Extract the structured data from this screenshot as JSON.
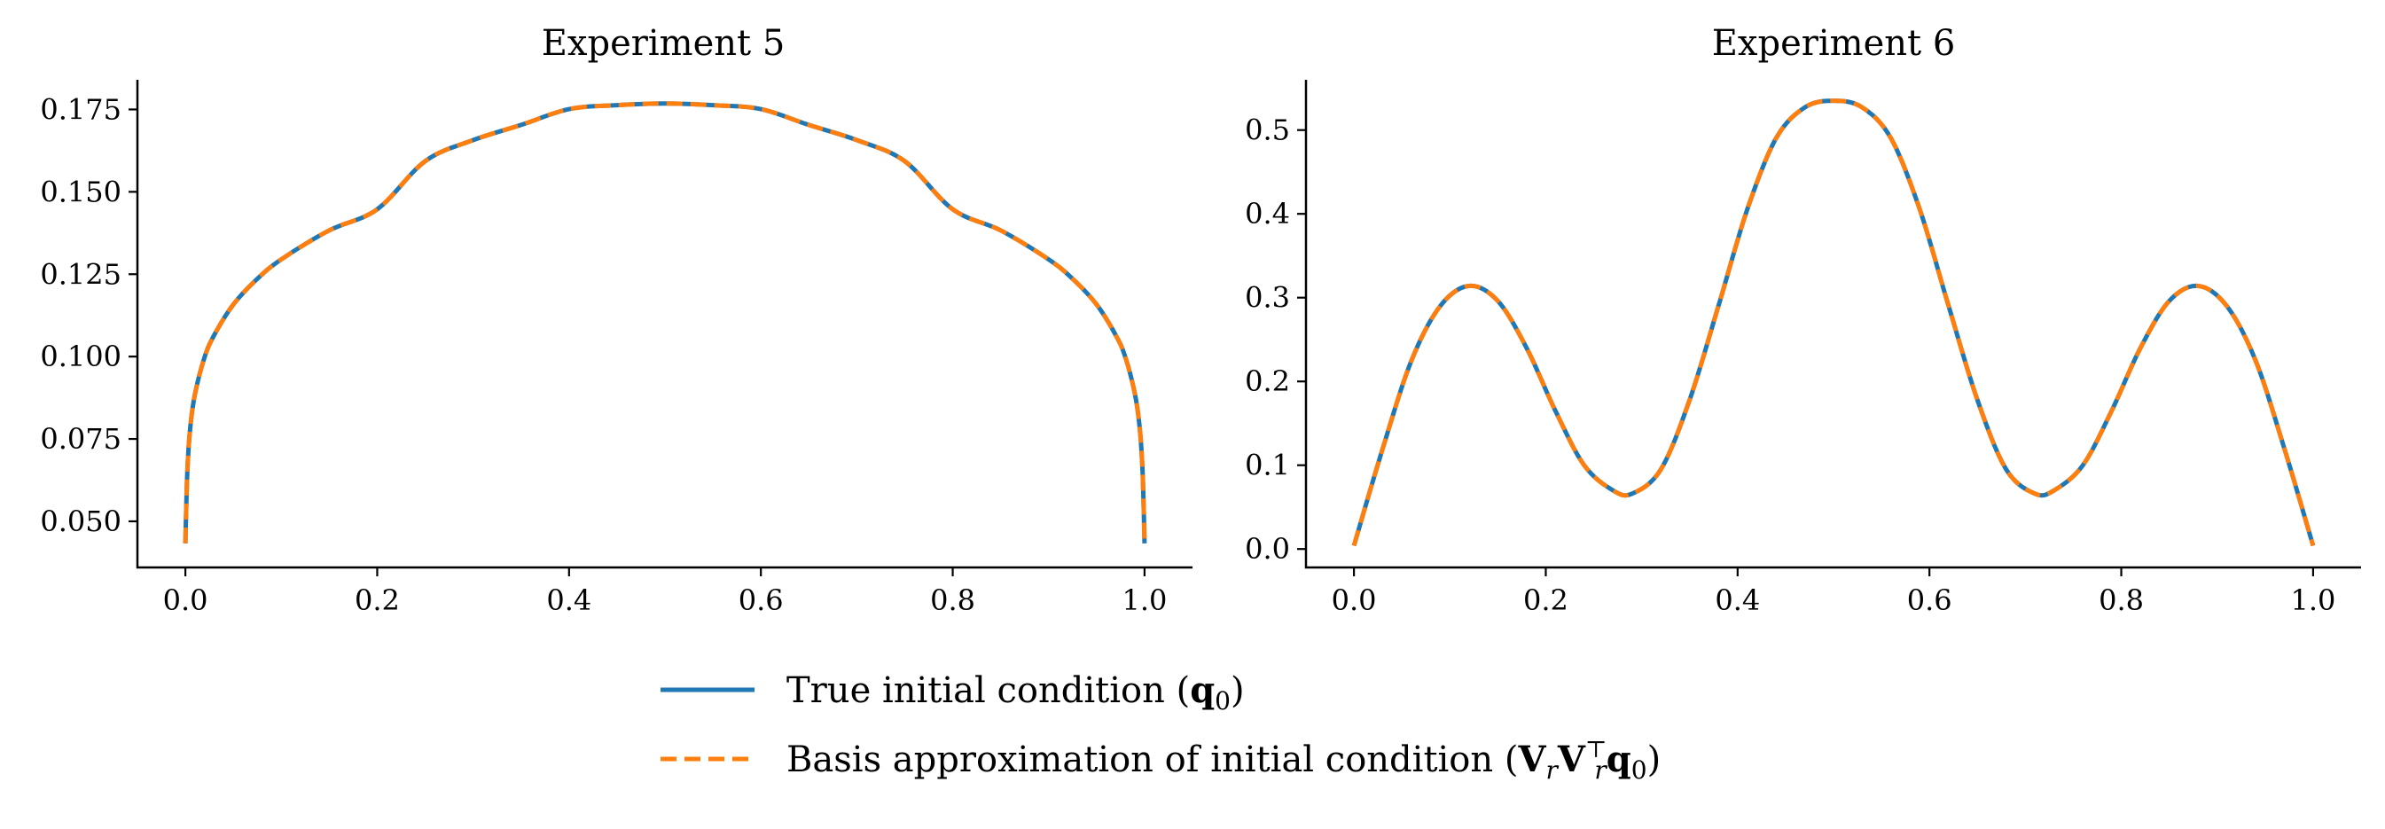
{
  "chart_data": [
    {
      "type": "line",
      "title": "Experiment 5",
      "xlabel": "",
      "ylabel": "",
      "xlim": [
        -0.05,
        1.05
      ],
      "ylim": [
        0.036,
        0.184
      ],
      "xticks": [
        0.0,
        0.2,
        0.4,
        0.6,
        0.8,
        1.0
      ],
      "xtick_labels": [
        "0.0",
        "0.2",
        "0.4",
        "0.6",
        "0.8",
        "1.0"
      ],
      "yticks": [
        0.05,
        0.075,
        0.1,
        0.125,
        0.15,
        0.175
      ],
      "ytick_labels": [
        "0.050",
        "0.075",
        "0.100",
        "0.125",
        "0.150",
        "0.175"
      ],
      "x": [
        0,
        0.002,
        0.005,
        0.01,
        0.02,
        0.03,
        0.05,
        0.075,
        0.1,
        0.15,
        0.2,
        0.25,
        0.3,
        0.35,
        0.4,
        0.45,
        0.5,
        0.55,
        0.6,
        0.65,
        0.7,
        0.75,
        0.8,
        0.85,
        0.9,
        0.925,
        0.95,
        0.97,
        0.98,
        0.99,
        0.995,
        0.998,
        1.0
      ],
      "series": [
        {
          "name": "True initial condition (q0)",
          "values": [
            0.0433,
            0.0648,
            0.0782,
            0.0886,
            0.0998,
            0.1065,
            0.1158,
            0.1236,
            0.1295,
            0.1383,
            0.1447,
            0.1593,
            0.1657,
            0.1703,
            0.1751,
            0.1763,
            0.1768,
            0.1763,
            0.1751,
            0.1703,
            0.1657,
            0.1593,
            0.1447,
            0.1383,
            0.1295,
            0.1236,
            0.1158,
            0.1065,
            0.0998,
            0.0886,
            0.0782,
            0.0648,
            0.0433
          ]
        },
        {
          "name": "Basis approximation of initial condition",
          "values": [
            0.0433,
            0.0648,
            0.0782,
            0.0886,
            0.0998,
            0.1065,
            0.1158,
            0.1236,
            0.1295,
            0.1383,
            0.1447,
            0.1593,
            0.1657,
            0.1703,
            0.1751,
            0.1763,
            0.1768,
            0.1763,
            0.1751,
            0.1703,
            0.1657,
            0.1593,
            0.1447,
            0.1383,
            0.1295,
            0.1236,
            0.1158,
            0.1065,
            0.0998,
            0.0886,
            0.0782,
            0.0648,
            0.0433
          ]
        }
      ]
    },
    {
      "type": "line",
      "title": "Experiment 6",
      "xlabel": "",
      "ylabel": "",
      "xlim": [
        -0.05,
        1.05
      ],
      "ylim": [
        -0.022,
        0.56
      ],
      "xticks": [
        0.0,
        0.2,
        0.4,
        0.6,
        0.8,
        1.0
      ],
      "xtick_labels": [
        "0.0",
        "0.2",
        "0.4",
        "0.6",
        "0.8",
        "1.0"
      ],
      "yticks": [
        0.0,
        0.1,
        0.2,
        0.3,
        0.4,
        0.5
      ],
      "ytick_labels": [
        "0.0",
        "0.1",
        "0.2",
        "0.3",
        "0.4",
        "0.5"
      ],
      "x": [
        0,
        0.03,
        0.06,
        0.09,
        0.12,
        0.15,
        0.18,
        0.21,
        0.24,
        0.27,
        0.29,
        0.32,
        0.35,
        0.38,
        0.41,
        0.44,
        0.47,
        0.5,
        0.53,
        0.56,
        0.59,
        0.62,
        0.65,
        0.68,
        0.71,
        0.73,
        0.76,
        0.79,
        0.82,
        0.85,
        0.88,
        0.91,
        0.94,
        0.97,
        1.0
      ],
      "series": [
        {
          "name": "True initial condition (q0)",
          "values": [
            0.004,
            0.12,
            0.225,
            0.29,
            0.314,
            0.296,
            0.24,
            0.165,
            0.1,
            0.07,
            0.066,
            0.095,
            0.178,
            0.29,
            0.405,
            0.49,
            0.527,
            0.535,
            0.527,
            0.49,
            0.405,
            0.29,
            0.178,
            0.095,
            0.066,
            0.07,
            0.1,
            0.165,
            0.24,
            0.296,
            0.314,
            0.29,
            0.225,
            0.12,
            0.004
          ]
        },
        {
          "name": "Basis approximation of initial condition",
          "values": [
            0.004,
            0.12,
            0.225,
            0.29,
            0.314,
            0.296,
            0.24,
            0.165,
            0.1,
            0.07,
            0.066,
            0.095,
            0.178,
            0.29,
            0.405,
            0.49,
            0.527,
            0.535,
            0.527,
            0.49,
            0.405,
            0.29,
            0.178,
            0.095,
            0.066,
            0.07,
            0.1,
            0.165,
            0.24,
            0.296,
            0.314,
            0.29,
            0.225,
            0.12,
            0.004
          ]
        }
      ]
    }
  ],
  "legend": {
    "placement": "bottom-center",
    "items": [
      {
        "label_text": "True initial condition (",
        "math": "q",
        "math_sub": "0",
        "label_end": ")",
        "style": "solid"
      },
      {
        "label_text": "Basis approximation of initial condition (",
        "math": "V",
        "math_sub": "r",
        "math2": "V",
        "math2_sub": "r",
        "math2_sup": "⊤",
        "math3": "q",
        "math3_sub": "0",
        "label_end": ")",
        "style": "dashed"
      }
    ]
  },
  "colors": {
    "true_series": "#1f77b4",
    "approx_series": "#ff7f0e"
  }
}
